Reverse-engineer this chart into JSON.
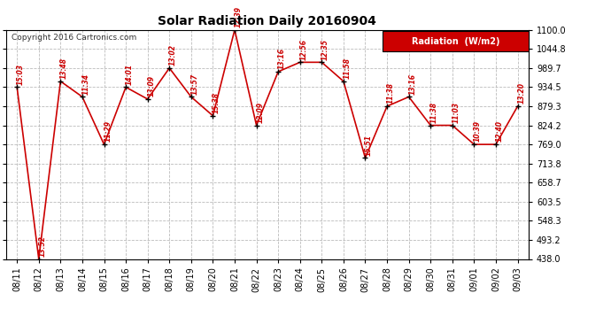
{
  "title": "Solar Radiation Daily 20160904",
  "copyright": "Copyright 2016 Cartronics.com",
  "legend_label": "Radiation  (W/m2)",
  "dates": [
    "08/11",
    "08/12",
    "08/13",
    "08/14",
    "08/15",
    "08/16",
    "08/17",
    "08/18",
    "08/19",
    "08/20",
    "08/21",
    "08/22",
    "08/23",
    "08/24",
    "08/25",
    "08/26",
    "08/27",
    "08/28",
    "08/29",
    "08/30",
    "08/31",
    "09/01",
    "09/02",
    "09/03"
  ],
  "values": [
    934.5,
    438.0,
    951.5,
    906.5,
    769.0,
    934.5,
    900.0,
    989.7,
    906.5,
    851.8,
    1100.0,
    824.2,
    979.3,
    1006.4,
    1006.4,
    951.5,
    730.0,
    879.3,
    906.5,
    824.2,
    824.2,
    769.0,
    769.0,
    879.3
  ],
  "labels": [
    "15:03",
    "13:52",
    "13:48",
    "11:34",
    "11:29",
    "14:01",
    "13:09",
    "13:02",
    "13:57",
    "15:38",
    "12:39",
    "12:09",
    "13:16",
    "12:56",
    "12:35",
    "11:58",
    "15:51",
    "11:38",
    "13:16",
    "11:38",
    "11:03",
    "10:39",
    "12:40",
    "13:20"
  ],
  "ymin": 438.0,
  "ymax": 1100.0,
  "yticks": [
    438.0,
    493.2,
    548.3,
    603.5,
    658.7,
    713.8,
    769.0,
    824.2,
    879.3,
    934.5,
    989.7,
    1044.8,
    1100.0
  ],
  "line_color": "#cc0000",
  "marker_color": "#000000",
  "bg_color": "#ffffff",
  "grid_color": "#aaaaaa",
  "label_color": "#cc0000",
  "title_color": "#000000",
  "legend_bg": "#cc0000",
  "legend_text_color": "#ffffff"
}
